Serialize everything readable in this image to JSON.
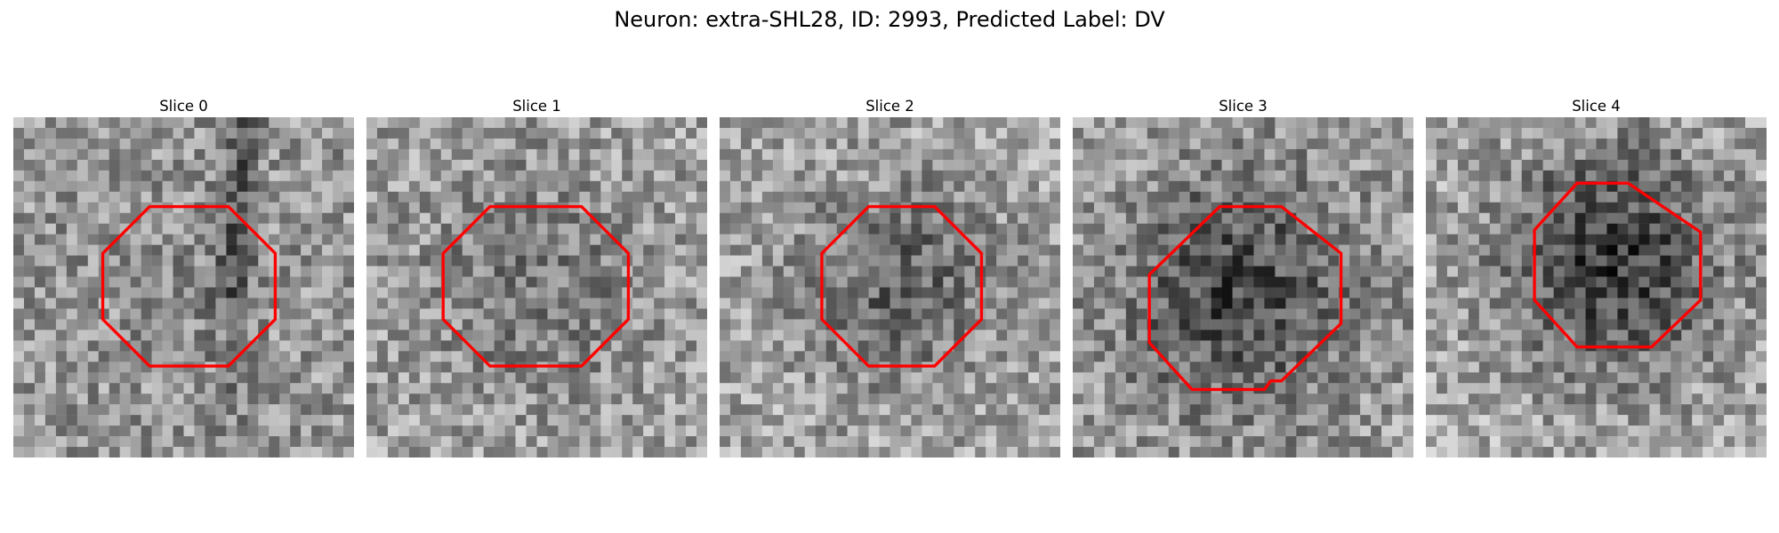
{
  "figure": {
    "title": "Neuron: extra-SHL28, ID: 2993, Predicted Label: DV"
  },
  "colors": {
    "contour": "#ff0000",
    "background": "#ffffff"
  },
  "panels": [
    {
      "title": "Slice 0"
    },
    {
      "title": "Slice 1"
    },
    {
      "title": "Slice 2"
    },
    {
      "title": "Slice 3"
    },
    {
      "title": "Slice 4"
    }
  ]
}
